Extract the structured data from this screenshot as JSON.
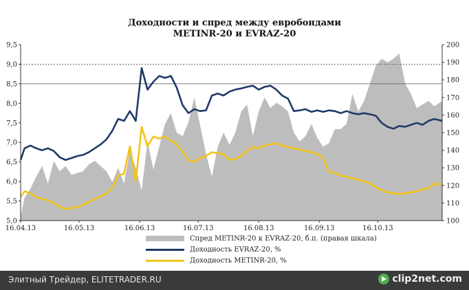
{
  "chart_data": {
    "type": "line",
    "title": "Доходности и спред между евробондами",
    "subtitle": "METINR-20 и EVRAZ-20",
    "x_ticks": [
      "16.04.13",
      "16.05.13",
      "16.06.13",
      "16.07.13",
      "16.08.13",
      "16.09.13",
      "16.10.13"
    ],
    "x_range": [
      "16.04.13",
      "18.11.13"
    ],
    "y_left": {
      "ticks": [
        "5,0",
        "5,5",
        "6,0",
        "6,5",
        "7,0",
        "7,5",
        "8,0",
        "8,5",
        "9,0",
        "9,5"
      ],
      "min": 5.0,
      "max": 9.5
    },
    "y_right": {
      "ticks": [
        "100",
        "110",
        "120",
        "130",
        "140",
        "150",
        "160",
        "170",
        "180",
        "190",
        "200"
      ],
      "min": 100,
      "max": 200
    },
    "gridlines_left": [
      8.5,
      9.0
    ],
    "series": [
      {
        "name": "Спред METINR-20 к EVRAZ-20, б.п. (правая шкала)",
        "type": "area",
        "axis": "right",
        "color": "#bdbdbd",
        "x": [
          "16.04.13",
          "18.04.13",
          "21.04.13",
          "24.04.13",
          "27.04.13",
          "30.04.13",
          "03.05.13",
          "06.05.13",
          "09.05.13",
          "12.05.13",
          "15.05.13",
          "18.05.13",
          "21.05.13",
          "24.05.13",
          "27.05.13",
          "30.05.13",
          "02.06.13",
          "05.06.13",
          "08.06.13",
          "11.06.13",
          "14.06.13",
          "17.06.13",
          "20.06.13",
          "23.06.13",
          "26.06.13",
          "29.06.13",
          "02.07.13",
          "05.07.13",
          "08.07.13",
          "11.07.13",
          "14.07.13",
          "17.07.13",
          "20.07.13",
          "23.07.13",
          "26.07.13",
          "29.07.13",
          "01.08.13",
          "04.08.13",
          "07.08.13",
          "10.08.13",
          "13.08.13",
          "16.08.13",
          "19.08.13",
          "22.08.13",
          "25.08.13",
          "28.08.13",
          "31.08.13",
          "03.09.13",
          "06.09.13",
          "09.09.13",
          "12.09.13",
          "15.09.13",
          "18.09.13",
          "21.09.13",
          "24.09.13",
          "27.09.13",
          "30.09.13",
          "03.10.13",
          "06.10.13",
          "09.10.13",
          "12.10.13",
          "15.10.13",
          "18.10.13",
          "21.10.13",
          "24.10.13",
          "27.10.13",
          "30.10.13",
          "02.11.13",
          "05.11.13",
          "08.11.13",
          "11.11.13",
          "14.11.13",
          "18.11.13"
        ],
        "values": [
          102,
          113,
          118,
          125,
          131,
          121,
          134,
          128,
          131,
          126,
          127,
          128,
          132,
          134,
          131,
          128,
          122,
          130,
          121,
          140,
          130,
          117,
          145,
          129,
          142,
          155,
          161,
          150,
          148,
          156,
          170,
          154,
          138,
          125,
          142,
          150,
          143,
          150,
          162,
          166,
          148,
          162,
          170,
          164,
          167,
          165,
          162,
          150,
          145,
          148,
          155,
          147,
          142,
          144,
          152,
          152,
          155,
          172,
          162,
          168,
          178,
          188,
          192,
          190,
          192,
          195,
          178,
          172,
          164,
          166,
          168,
          165,
          168
        ]
      },
      {
        "name": "Доходность EVRAZ-20, %",
        "type": "line",
        "axis": "left",
        "color": "#1f3a68",
        "x": [
          "16.04.13",
          "18.04.13",
          "21.04.13",
          "24.04.13",
          "27.04.13",
          "30.04.13",
          "03.05.13",
          "06.05.13",
          "09.05.13",
          "12.05.13",
          "15.05.13",
          "18.05.13",
          "21.05.13",
          "24.05.13",
          "27.05.13",
          "30.05.13",
          "02.06.13",
          "05.06.13",
          "08.06.13",
          "11.06.13",
          "14.06.13",
          "17.06.13",
          "20.06.13",
          "23.06.13",
          "26.06.13",
          "29.06.13",
          "02.07.13",
          "05.07.13",
          "08.07.13",
          "11.07.13",
          "14.07.13",
          "17.07.13",
          "20.07.13",
          "23.07.13",
          "26.07.13",
          "29.07.13",
          "01.08.13",
          "04.08.13",
          "07.08.13",
          "10.08.13",
          "13.08.13",
          "16.08.13",
          "19.08.13",
          "22.08.13",
          "25.08.13",
          "28.08.13",
          "31.08.13",
          "03.09.13",
          "06.09.13",
          "09.09.13",
          "12.09.13",
          "15.09.13",
          "18.09.13",
          "21.09.13",
          "24.09.13",
          "27.09.13",
          "30.09.13",
          "03.10.13",
          "06.10.13",
          "09.10.13",
          "12.10.13",
          "15.10.13",
          "18.10.13",
          "21.10.13",
          "24.10.13",
          "27.10.13",
          "30.10.13",
          "02.11.13",
          "05.11.13",
          "08.11.13",
          "11.11.13",
          "14.11.13",
          "18.11.13"
        ],
        "values": [
          6.55,
          6.85,
          6.92,
          6.85,
          6.8,
          6.85,
          6.78,
          6.62,
          6.55,
          6.6,
          6.65,
          6.68,
          6.75,
          6.85,
          6.95,
          7.08,
          7.3,
          7.6,
          7.55,
          7.8,
          7.55,
          8.9,
          8.35,
          8.55,
          8.7,
          8.65,
          8.7,
          8.4,
          7.95,
          7.75,
          7.85,
          7.8,
          7.82,
          8.2,
          8.25,
          8.2,
          8.3,
          8.35,
          8.38,
          8.42,
          8.45,
          8.35,
          8.42,
          8.45,
          8.35,
          8.2,
          8.12,
          7.8,
          7.82,
          7.85,
          7.78,
          7.82,
          7.78,
          7.82,
          7.8,
          7.75,
          7.8,
          7.75,
          7.72,
          7.75,
          7.72,
          7.68,
          7.5,
          7.4,
          7.35,
          7.42,
          7.4,
          7.45,
          7.5,
          7.45,
          7.55,
          7.6,
          7.55
        ]
      },
      {
        "name": "Доходность METINR-20, %",
        "type": "line",
        "axis": "left",
        "color": "#f2c418",
        "x": [
          "16.04.13",
          "18.04.13",
          "21.04.13",
          "24.04.13",
          "27.04.13",
          "30.04.13",
          "03.05.13",
          "06.05.13",
          "09.05.13",
          "12.05.13",
          "15.05.13",
          "18.05.13",
          "21.05.13",
          "24.05.13",
          "27.05.13",
          "30.05.13",
          "02.06.13",
          "05.06.13",
          "08.06.13",
          "11.06.13",
          "14.06.13",
          "17.06.13",
          "20.06.13",
          "23.06.13",
          "26.06.13",
          "29.06.13",
          "02.07.13",
          "05.07.13",
          "08.07.13",
          "11.07.13",
          "14.07.13",
          "17.07.13",
          "20.07.13",
          "23.07.13",
          "26.07.13",
          "29.07.13",
          "01.08.13",
          "04.08.13",
          "07.08.13",
          "10.08.13",
          "13.08.13",
          "16.08.13",
          "19.08.13",
          "22.08.13",
          "25.08.13",
          "28.08.13",
          "31.08.13",
          "03.09.13",
          "06.09.13",
          "09.09.13",
          "12.09.13",
          "15.09.13",
          "18.09.13",
          "21.09.13",
          "24.09.13",
          "27.09.13",
          "30.09.13",
          "03.10.13",
          "06.10.13",
          "09.10.13",
          "12.10.13",
          "15.10.13",
          "18.10.13",
          "21.10.13",
          "24.10.13",
          "27.10.13",
          "30.10.13",
          "02.11.13",
          "05.11.13",
          "08.11.13",
          "11.11.13",
          "14.11.13",
          "18.11.13"
        ],
        "values": [
          5.6,
          5.75,
          5.7,
          5.6,
          5.55,
          5.52,
          5.45,
          5.35,
          5.3,
          5.32,
          5.35,
          5.4,
          5.48,
          5.55,
          5.62,
          5.7,
          5.85,
          6.15,
          6.2,
          6.9,
          6.0,
          7.4,
          6.9,
          7.15,
          7.1,
          7.15,
          7.05,
          6.95,
          6.75,
          6.55,
          6.5,
          6.6,
          6.65,
          6.75,
          6.72,
          6.7,
          6.55,
          6.58,
          6.65,
          6.78,
          6.88,
          6.85,
          6.92,
          6.95,
          6.98,
          6.92,
          6.88,
          6.85,
          6.82,
          6.78,
          6.75,
          6.7,
          6.6,
          6.25,
          6.22,
          6.15,
          6.12,
          6.08,
          6.05,
          6.0,
          5.95,
          5.85,
          5.78,
          5.72,
          5.7,
          5.68,
          5.7,
          5.72,
          5.75,
          5.8,
          5.82,
          5.95,
          5.92
        ]
      }
    ]
  },
  "legend": {
    "spread": "Спред METINR-20 к EVRAZ-20, б.п. (правая шкала)",
    "evraz": "Доходность EVRAZ-20, %",
    "metinr": "Доходность METINR-20, %"
  },
  "footer": {
    "source": "Элитный Трейдер, ELITETRADER.RU",
    "logo": "clip2net.com",
    "logo_icon": "play-arrow-icon"
  }
}
